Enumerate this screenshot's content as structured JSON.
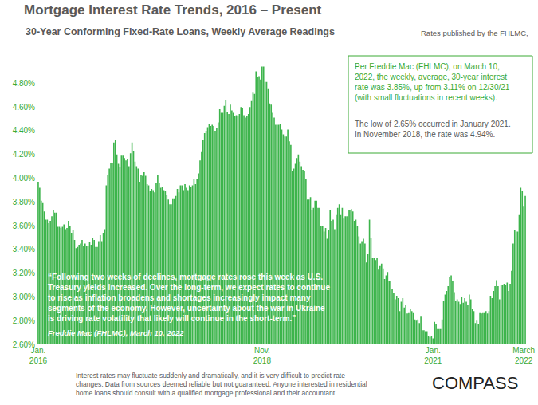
{
  "chart_data": {
    "type": "bar",
    "title": "Mortgage Interest Rate Trends, 2016 – Present",
    "subtitle": "30-Year Conforming Fixed-Rate Loans, Weekly Average Readings",
    "source_note": "Rates published by the FHLMC,",
    "color": "#3cb44b",
    "grid": false,
    "ylim": [
      2.6,
      4.95
    ],
    "yticks": [
      {
        "value": 2.6,
        "label": "2.60%"
      },
      {
        "value": 2.8,
        "label": "2.80%"
      },
      {
        "value": 3.0,
        "label": "3.00%"
      },
      {
        "value": 3.2,
        "label": "3.20%"
      },
      {
        "value": 3.4,
        "label": "3.40%"
      },
      {
        "value": 3.6,
        "label": "3.60%"
      },
      {
        "value": 3.8,
        "label": "3.80%"
      },
      {
        "value": 4.0,
        "label": "4.00%"
      },
      {
        "value": 4.2,
        "label": "4.20%"
      },
      {
        "value": 4.4,
        "label": "4.40%"
      },
      {
        "value": 4.6,
        "label": "4.60%"
      },
      {
        "value": 4.8,
        "label": "4.80%"
      }
    ],
    "categories": [
      "Jan.\n2016",
      null,
      null,
      null,
      null,
      null,
      null,
      null,
      null,
      null,
      null,
      null,
      null,
      null,
      null,
      null,
      null,
      null,
      null,
      null,
      null,
      null,
      null,
      null,
      null,
      null,
      null,
      null,
      null,
      null,
      null,
      null,
      null,
      null,
      null,
      null,
      null,
      null,
      null,
      null,
      null,
      null,
      null,
      null,
      null,
      null,
      null,
      null,
      null,
      null,
      null,
      null,
      null,
      null,
      null,
      null,
      null,
      null,
      null,
      null,
      null,
      null,
      null,
      null,
      null,
      null,
      null,
      null,
      null,
      null,
      null,
      null,
      null,
      null,
      null,
      null,
      null,
      null,
      null,
      null,
      null,
      null,
      null,
      null,
      null,
      null,
      null,
      null,
      null,
      null,
      null,
      null,
      null,
      null,
      null,
      null,
      null,
      null,
      null,
      null,
      null,
      null,
      null,
      null,
      null,
      null,
      null,
      null,
      null,
      null,
      null,
      null,
      null,
      null,
      null,
      null,
      null,
      null,
      null,
      null,
      null,
      null,
      null,
      null,
      null,
      null,
      null,
      null,
      null,
      null,
      null,
      null,
      null,
      null,
      null,
      null,
      null,
      null,
      null,
      null,
      null,
      null,
      null,
      null,
      null,
      null,
      null,
      null,
      "Nov.\n2018",
      null,
      null,
      null,
      null,
      null,
      null,
      null,
      null,
      null,
      null,
      null,
      null,
      null,
      null,
      null,
      null,
      null,
      null,
      null,
      null,
      null,
      null,
      null,
      null,
      null,
      null,
      null,
      null,
      null,
      null,
      null,
      null,
      null,
      null,
      null,
      null,
      null,
      null,
      null,
      null,
      null,
      null,
      null,
      null,
      null,
      null,
      null,
      null,
      null,
      null,
      null,
      null,
      null,
      null,
      null,
      null,
      null,
      null,
      null,
      null,
      null,
      null,
      null,
      null,
      null,
      null,
      null,
      null,
      null,
      null,
      null,
      null,
      null,
      null,
      null,
      null,
      null,
      null,
      null,
      null,
      null,
      null,
      null,
      null,
      null,
      null,
      null,
      null,
      null,
      null,
      null,
      null,
      null,
      null,
      null,
      null,
      null,
      null,
      null,
      null,
      null,
      null,
      null,
      null,
      null,
      null,
      null,
      null,
      null,
      null,
      null,
      null,
      "Jan.\n2021",
      null,
      null,
      null,
      null,
      null,
      null,
      null,
      null,
      null,
      null,
      null,
      null,
      null,
      null,
      null,
      null,
      null,
      null,
      null,
      null,
      null,
      null,
      null,
      null,
      null,
      null,
      null,
      null,
      null,
      null,
      null,
      null,
      null,
      null,
      null,
      null,
      null,
      null,
      null,
      null,
      null,
      null,
      null,
      null,
      null,
      null,
      null,
      null,
      null,
      null,
      null,
      null,
      null,
      null,
      null,
      null,
      null,
      null,
      null,
      "March\n2022",
      null
    ],
    "values": [
      3.97,
      3.92,
      3.81,
      3.79,
      3.72,
      3.65,
      3.65,
      3.62,
      3.64,
      3.68,
      3.73,
      3.71,
      3.71,
      3.59,
      3.59,
      3.58,
      3.59,
      3.61,
      3.57,
      3.58,
      3.64,
      3.6,
      3.54,
      3.56,
      3.48,
      3.41,
      3.42,
      3.44,
      3.45,
      3.48,
      3.43,
      3.45,
      3.43,
      3.43,
      3.46,
      3.44,
      3.5,
      3.48,
      3.42,
      3.42,
      3.47,
      3.52,
      3.47,
      3.54,
      3.57,
      3.94,
      4.03,
      4.08,
      4.13,
      4.13,
      4.3,
      4.32,
      4.2,
      4.12,
      4.09,
      4.19,
      4.19,
      4.17,
      4.15,
      4.16,
      4.1,
      4.21,
      4.3,
      4.23,
      4.14,
      4.1,
      4.08,
      3.97,
      4.03,
      4.02,
      4.05,
      4.02,
      3.95,
      3.94,
      3.89,
      3.91,
      3.9,
      3.88,
      3.96,
      4.03,
      3.96,
      3.92,
      3.93,
      3.9,
      3.89,
      3.86,
      3.82,
      3.78,
      3.78,
      3.83,
      3.83,
      3.85,
      3.91,
      3.88,
      3.94,
      3.94,
      3.9,
      3.95,
      3.92,
      3.9,
      3.94,
      3.93,
      3.94,
      3.99,
      3.95,
      3.99,
      4.04,
      4.15,
      4.22,
      4.32,
      4.38,
      4.4,
      4.43,
      4.46,
      4.44,
      4.45,
      4.44,
      4.4,
      4.42,
      4.47,
      4.58,
      4.55,
      4.55,
      4.61,
      4.66,
      4.56,
      4.54,
      4.62,
      4.57,
      4.55,
      4.52,
      4.53,
      4.52,
      4.54,
      4.6,
      4.59,
      4.53,
      4.51,
      4.52,
      4.54,
      4.6,
      4.65,
      4.72,
      4.71,
      4.9,
      4.85,
      4.86,
      4.83,
      4.94,
      4.94,
      4.81,
      4.81,
      4.75,
      4.63,
      4.62,
      4.55,
      4.51,
      4.45,
      4.45,
      4.45,
      4.46,
      4.41,
      4.37,
      4.35,
      4.35,
      4.41,
      4.31,
      4.28,
      4.06,
      4.08,
      4.12,
      4.17,
      4.2,
      4.14,
      4.1,
      4.07,
      4.06,
      3.99,
      3.82,
      3.82,
      3.84,
      3.73,
      3.75,
      3.81,
      3.81,
      3.75,
      3.75,
      3.6,
      3.6,
      3.55,
      3.58,
      3.49,
      3.56,
      3.73,
      3.64,
      3.65,
      3.57,
      3.69,
      3.75,
      3.78,
      3.69,
      3.75,
      3.66,
      3.68,
      3.68,
      3.73,
      3.73,
      3.74,
      3.72,
      3.64,
      3.65,
      3.6,
      3.51,
      3.45,
      3.47,
      3.49,
      3.45,
      3.29,
      3.36,
      3.65,
      3.5,
      3.33,
      3.33,
      3.31,
      3.33,
      3.23,
      3.26,
      3.28,
      3.24,
      3.15,
      3.18,
      3.21,
      3.13,
      3.13,
      3.07,
      3.03,
      2.98,
      3.01,
      2.99,
      2.88,
      2.96,
      2.99,
      2.91,
      2.93,
      2.86,
      2.87,
      2.9,
      2.88,
      2.87,
      2.81,
      2.8,
      2.81,
      2.78,
      2.84,
      2.72,
      2.72,
      2.71,
      2.71,
      2.67,
      2.66,
      2.67,
      2.65,
      2.79,
      2.77,
      2.73,
      2.73,
      2.73,
      2.81,
      2.97,
      3.02,
      3.05,
      3.09,
      3.17,
      3.18,
      3.13,
      3.04,
      2.97,
      2.98,
      2.96,
      2.94,
      3.0,
      2.95,
      2.99,
      2.96,
      2.93,
      3.02,
      2.98,
      2.9,
      2.88,
      2.78,
      2.8,
      2.77,
      2.87,
      2.86,
      2.87,
      2.87,
      2.88,
      2.86,
      2.88,
      3.01,
      2.99,
      3.05,
      3.09,
      3.14,
      3.09,
      2.98,
      3.1,
      3.1,
      3.11,
      3.1,
      3.12,
      3.05,
      3.11,
      3.22,
      3.45,
      3.56,
      3.55,
      3.55,
      3.69,
      3.92,
      3.89,
      3.76,
      3.85
    ],
    "callout": {
      "lines": [
        "Per Freddie Mac (FHLMC), on March 10,",
        "2022, the weekly, average, 30-year interest",
        "rate was 3.85%, up from 3.11% on 12/30/21",
        "(with small fluctuations in recent weeks)."
      ],
      "note_lines": [
        "The low of 2.65% occurred in January 2021.",
        "In November 2018, the rate was 4.94%."
      ]
    },
    "quote": {
      "lines": [
        "“Following two weeks of declines, mortgage rates rose this week as U.S.",
        "Treasury yields increased. Over the long-term, we expect rates to continue",
        "to rise as inflation broadens and shortages increasingly impact many",
        "segments of the economy. However, uncertainty about the war in Ukraine",
        "is driving rate volatility that likely will continue in the short-term.”"
      ],
      "source": "Freddie Mac (FHLMC), March 10, 2022"
    },
    "footer": [
      "Interest rates may fluctuate suddenly and dramatically, and it is very difficult to predict rate",
      "changes. Data from sources deemed reliable but not guaranteed. Anyone interested in residential",
      "home loans should consult with a qualified mortgage professional and their accountant."
    ],
    "logo": "COMPASS"
  }
}
